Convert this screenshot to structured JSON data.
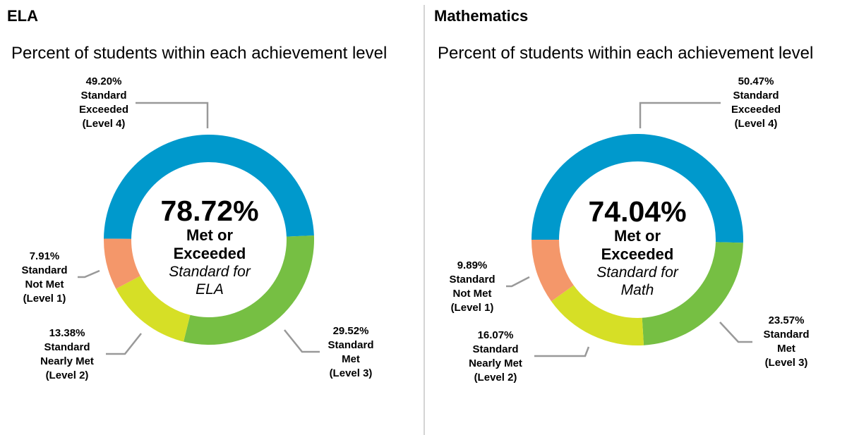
{
  "ela": {
    "subject": "ELA",
    "subtitle": "Percent of students within each achievement level",
    "center": {
      "value": "78.72%",
      "line1": "Met or",
      "line2": "Exceeded",
      "line3": "Standard for",
      "line4": "ELA"
    },
    "labels": {
      "level4": {
        "pct": "49.20%",
        "l1": "Standard",
        "l2": "Exceeded",
        "l3": "(Level 4)"
      },
      "level3": {
        "pct": "29.52%",
        "l1": "Standard",
        "l2": "Met",
        "l3": "(Level 3)"
      },
      "level2": {
        "pct": "13.38%",
        "l1": "Standard",
        "l2": "Nearly Met",
        "l3": "(Level 2)"
      },
      "level1": {
        "pct": "7.91%",
        "l1": "Standard",
        "l2": "Not Met",
        "l3": "(Level 1)"
      }
    }
  },
  "math": {
    "subject": "Mathematics",
    "subtitle": "Percent of students within each achievement level",
    "center": {
      "value": "74.04%",
      "line1": "Met or",
      "line2": "Exceeded",
      "line3": "Standard for",
      "line4": "Math"
    },
    "labels": {
      "level4": {
        "pct": "50.47%",
        "l1": "Standard",
        "l2": "Exceeded",
        "l3": "(Level 4)"
      },
      "level3": {
        "pct": "23.57%",
        "l1": "Standard",
        "l2": "Met",
        "l3": "(Level 3)"
      },
      "level2": {
        "pct": "16.07%",
        "l1": "Standard",
        "l2": "Nearly Met",
        "l3": "(Level 2)"
      },
      "level1": {
        "pct": "9.89%",
        "l1": "Standard",
        "l2": "Not Met",
        "l3": "(Level 1)"
      }
    }
  },
  "colors": {
    "level4": "#0099cc",
    "level3": "#76bf43",
    "level2": "#d6df26",
    "level1": "#f4976a",
    "leader": "#999999",
    "divider": "#d4d4d4"
  },
  "chart_data": [
    {
      "type": "pie",
      "title": "ELA",
      "subtitle": "Percent of students within each achievement level",
      "categories": [
        "Standard Exceeded (Level 4)",
        "Standard Met (Level 3)",
        "Standard Nearly Met (Level 2)",
        "Standard Not Met (Level 1)"
      ],
      "values": [
        49.2,
        29.52,
        13.38,
        7.91
      ],
      "colors": [
        "#0099cc",
        "#76bf43",
        "#d6df26",
        "#f4976a"
      ],
      "donut": true,
      "center_annotation": "78.72% Met or Exceeded Standard for ELA"
    },
    {
      "type": "pie",
      "title": "Mathematics",
      "subtitle": "Percent of students within each achievement level",
      "categories": [
        "Standard Exceeded (Level 4)",
        "Standard Met (Level 3)",
        "Standard Nearly Met (Level 2)",
        "Standard Not Met (Level 1)"
      ],
      "values": [
        50.47,
        23.57,
        16.07,
        9.89
      ],
      "colors": [
        "#0099cc",
        "#76bf43",
        "#d6df26",
        "#f4976a"
      ],
      "donut": true,
      "center_annotation": "74.04% Met or Exceeded Standard for Math"
    }
  ]
}
